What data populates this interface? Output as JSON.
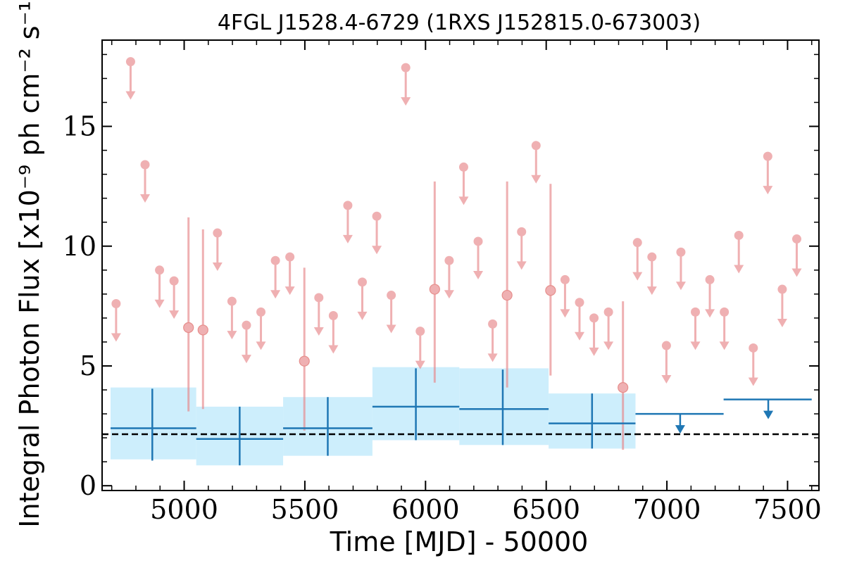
{
  "chart_data": {
    "type": "scatter",
    "title": "4FGL J1528.4-6729 (1RXS J152815.0-673003)",
    "xlabel": "Time [MJD] - 50000",
    "ylabel": "Integral Photon Flux [x10⁻⁹ ph cm⁻² s⁻¹]",
    "xlim": [
      4660,
      7630
    ],
    "ylim": [
      -0.2,
      18.6
    ],
    "xticks": [
      5000,
      5500,
      6000,
      6500,
      7000,
      7500
    ],
    "yticks": [
      0,
      5,
      10,
      15
    ],
    "grid": false,
    "baseline": 2.15,
    "colors": {
      "short_bins": "#e8868a",
      "long_bins": "#1f77b4",
      "band": "#cdeefc",
      "baseline": "#000000"
    },
    "short_bin_points": [
      {
        "x": 4718,
        "y": 7.6,
        "ul": true
      },
      {
        "x": 4778,
        "y": 17.7,
        "ul": true
      },
      {
        "x": 4838,
        "y": 13.4,
        "ul": true
      },
      {
        "x": 4898,
        "y": 9.0,
        "ul": true
      },
      {
        "x": 4958,
        "y": 8.55,
        "ul": true
      },
      {
        "x": 5018,
        "y": 6.6,
        "ylo": 3.1,
        "yhi": 11.2,
        "ul": false
      },
      {
        "x": 5078,
        "y": 6.5,
        "ylo": 3.2,
        "yhi": 10.7,
        "ul": false
      },
      {
        "x": 5138,
        "y": 10.55,
        "ul": true
      },
      {
        "x": 5198,
        "y": 7.7,
        "ul": true
      },
      {
        "x": 5258,
        "y": 6.7,
        "ul": true
      },
      {
        "x": 5318,
        "y": 7.25,
        "ul": true
      },
      {
        "x": 5378,
        "y": 9.4,
        "ul": true
      },
      {
        "x": 5438,
        "y": 9.55,
        "ul": true
      },
      {
        "x": 5498,
        "y": 5.2,
        "ylo": 2.3,
        "yhi": 9.1,
        "ul": false
      },
      {
        "x": 5558,
        "y": 7.85,
        "ul": true
      },
      {
        "x": 5618,
        "y": 7.1,
        "ul": true
      },
      {
        "x": 5678,
        "y": 11.7,
        "ul": true
      },
      {
        "x": 5738,
        "y": 8.5,
        "ul": true
      },
      {
        "x": 5798,
        "y": 11.25,
        "ul": true
      },
      {
        "x": 5858,
        "y": 7.95,
        "ul": true
      },
      {
        "x": 5918,
        "y": 17.45,
        "ul": true
      },
      {
        "x": 5978,
        "y": 6.45,
        "ul": true
      },
      {
        "x": 6038,
        "y": 8.2,
        "ylo": 4.3,
        "yhi": 12.7,
        "ul": false
      },
      {
        "x": 6098,
        "y": 9.4,
        "ul": true
      },
      {
        "x": 6158,
        "y": 13.3,
        "ul": true
      },
      {
        "x": 6218,
        "y": 10.2,
        "ul": true
      },
      {
        "x": 6278,
        "y": 6.75,
        "ul": true
      },
      {
        "x": 6338,
        "y": 7.95,
        "ylo": 4.1,
        "yhi": 12.7,
        "ul": false
      },
      {
        "x": 6398,
        "y": 10.6,
        "ul": true
      },
      {
        "x": 6458,
        "y": 14.2,
        "ul": true
      },
      {
        "x": 6518,
        "y": 8.15,
        "ylo": 4.6,
        "yhi": 12.6,
        "ul": false
      },
      {
        "x": 6578,
        "y": 8.6,
        "ul": true
      },
      {
        "x": 6638,
        "y": 7.65,
        "ul": true
      },
      {
        "x": 6698,
        "y": 7.0,
        "ul": true
      },
      {
        "x": 6758,
        "y": 7.25,
        "ul": true
      },
      {
        "x": 6818,
        "y": 4.1,
        "ylo": 1.5,
        "yhi": 7.7,
        "ul": false
      },
      {
        "x": 6878,
        "y": 10.15,
        "ul": true
      },
      {
        "x": 6938,
        "y": 9.55,
        "ul": true
      },
      {
        "x": 6998,
        "y": 5.85,
        "ul": true
      },
      {
        "x": 7058,
        "y": 9.75,
        "ul": true
      },
      {
        "x": 7118,
        "y": 7.25,
        "ul": true
      },
      {
        "x": 7178,
        "y": 8.6,
        "ul": true
      },
      {
        "x": 7238,
        "y": 7.25,
        "ul": true
      },
      {
        "x": 7298,
        "y": 10.45,
        "ul": true
      },
      {
        "x": 7358,
        "y": 5.75,
        "ul": true
      },
      {
        "x": 7418,
        "y": 13.75,
        "ul": true
      },
      {
        "x": 7478,
        "y": 8.2,
        "ul": true
      },
      {
        "x": 7538,
        "y": 10.3,
        "ul": true
      }
    ],
    "long_bin_points": [
      {
        "x": 4868,
        "xlo": 4695,
        "xhi": 5050,
        "y": 2.4,
        "ylo": 1.05,
        "yhi": 4.05,
        "band_lo": 1.1,
        "band_hi": 4.1,
        "ul": false
      },
      {
        "x": 5230,
        "xlo": 5050,
        "xhi": 5410,
        "y": 1.95,
        "ylo": 0.85,
        "yhi": 3.3,
        "band_lo": 0.85,
        "band_hi": 3.3,
        "ul": false
      },
      {
        "x": 5595,
        "xlo": 5410,
        "xhi": 5780,
        "y": 2.4,
        "ylo": 1.25,
        "yhi": 3.7,
        "band_lo": 1.25,
        "band_hi": 3.7,
        "ul": false
      },
      {
        "x": 5960,
        "xlo": 5780,
        "xhi": 6140,
        "y": 3.3,
        "ylo": 1.9,
        "yhi": 4.9,
        "band_lo": 1.9,
        "band_hi": 4.95,
        "ul": false
      },
      {
        "x": 6320,
        "xlo": 6140,
        "xhi": 6510,
        "y": 3.2,
        "ylo": 1.7,
        "yhi": 4.85,
        "band_lo": 1.7,
        "band_hi": 4.9,
        "ul": false
      },
      {
        "x": 6690,
        "xlo": 6510,
        "xhi": 6870,
        "y": 2.6,
        "ylo": 1.55,
        "yhi": 3.85,
        "band_lo": 1.55,
        "band_hi": 3.85,
        "ul": false
      },
      {
        "x": 7055,
        "xlo": 6870,
        "xhi": 7235,
        "y": 3.0,
        "ul": true
      },
      {
        "x": 7420,
        "xlo": 7235,
        "xhi": 7600,
        "y": 3.6,
        "ul": true
      }
    ]
  }
}
